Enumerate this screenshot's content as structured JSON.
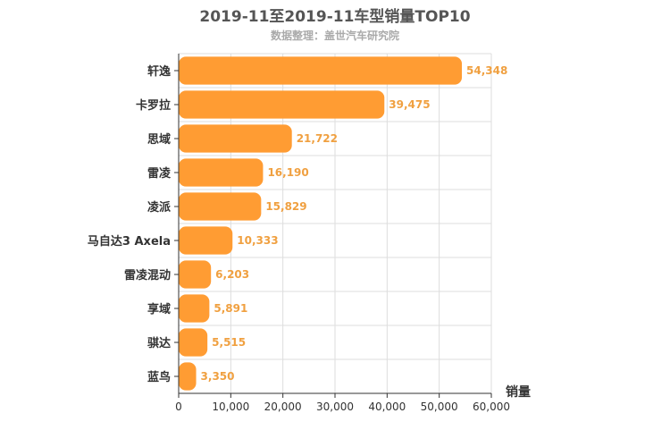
{
  "chart_data": {
    "type": "bar",
    "orientation": "horizontal",
    "title": "2019-11至2019-11车型销量TOP10",
    "subtitle": "数据整理：盖世汽车研究院",
    "xlabel": "销量",
    "ylabel": "",
    "categories": [
      "轩逸",
      "卡罗拉",
      "思域",
      "雷凌",
      "凌派",
      "马自达3 Axela",
      "雷凌混动",
      "享域",
      "骐达",
      "蓝鸟"
    ],
    "values": [
      54348,
      39475,
      21722,
      16190,
      15829,
      10333,
      6203,
      5891,
      5515,
      3350
    ],
    "value_labels": [
      "54,348",
      "39,475",
      "21,722",
      "16,190",
      "15,829",
      "10,333",
      "6,203",
      "5,891",
      "5,515",
      "3,350"
    ],
    "xlim": [
      0,
      60000
    ],
    "xticks": [
      0,
      10000,
      20000,
      30000,
      40000,
      50000,
      60000
    ],
    "xtick_labels": [
      "0",
      "10,000",
      "20,000",
      "30,000",
      "40,000",
      "50,000",
      "60,000"
    ],
    "grid": true,
    "bar_color": "#ff9c33",
    "label_color": "#f0a040"
  }
}
